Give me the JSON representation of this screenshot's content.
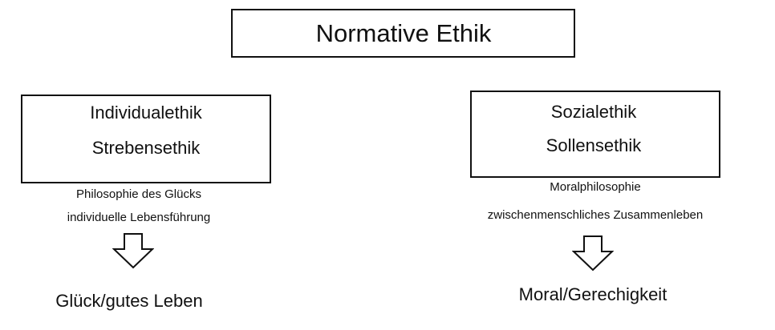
{
  "diagram": {
    "title": "Normative Ethik",
    "left": {
      "box_line1": "Individualethik",
      "box_line2": "Strebensethik",
      "note_line1": "Philosophie des Glücks",
      "note_line2": "individuelle Lebensführung",
      "result": "Glück/gutes Leben"
    },
    "right": {
      "box_line1": "Sozialethik",
      "box_line2": "Sollensethik",
      "note_line1": "Moralphilosophie",
      "note_line2": "zwischenmenschliches Zusammenleben",
      "result": "Moral/Gerechigkeit"
    },
    "arrow_icon": "down-arrow-outline-icon"
  }
}
